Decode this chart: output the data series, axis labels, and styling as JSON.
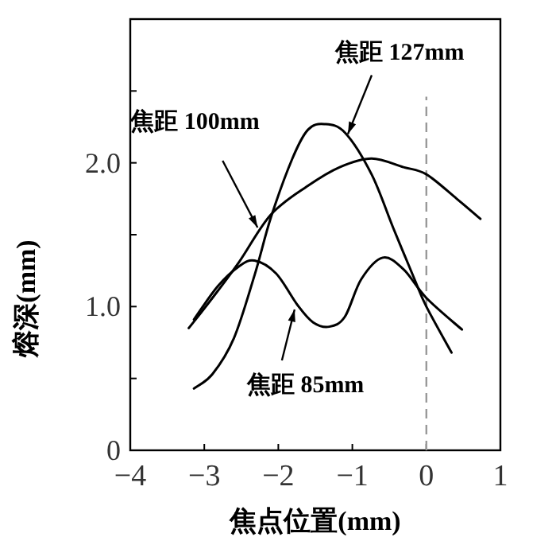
{
  "chart_data": {
    "type": "line",
    "xlabel": "焦点位置(mm)",
    "ylabel": "熔深(mm)",
    "xlim": [
      -4,
      1
    ],
    "xticks": [
      {
        "value": -4,
        "label": "−4"
      },
      {
        "value": -3,
        "label": "−3"
      },
      {
        "value": -2,
        "label": "−2"
      },
      {
        "value": -1,
        "label": "−1"
      },
      0,
      1
    ],
    "ylim": [
      0,
      3
    ],
    "yticks": [
      0,
      {
        "value": 0.5,
        "label": null
      },
      {
        "value": 1,
        "label": "1.0"
      },
      {
        "value": 1.5,
        "label": null
      },
      {
        "value": 2,
        "label": "2.0"
      },
      {
        "value": 2.5,
        "label": null
      }
    ],
    "grid": false,
    "marker": "none",
    "line_style": "solid",
    "series": [
      {
        "color": "#000000",
        "x": [
          -3.14,
          -2.89,
          -2.6,
          -2.32,
          -2.1,
          -1.81,
          -1.6,
          -1.38,
          -1.1,
          -0.74,
          -0.45,
          -0.16,
          0,
          0.34
        ],
        "values": [
          0.43,
          0.53,
          0.78,
          1.22,
          1.62,
          2.03,
          2.23,
          2.27,
          2.21,
          1.92,
          1.55,
          1.19,
          1.0,
          0.68
        ]
      },
      {
        "color": "#000000",
        "x": [
          -3.21,
          -2.89,
          -2.53,
          -2.1,
          -1.6,
          -1.17,
          -0.74,
          -0.31,
          0,
          0.41,
          0.73
        ],
        "values": [
          0.85,
          1.06,
          1.31,
          1.64,
          1.84,
          1.97,
          2.03,
          1.97,
          1.92,
          1.75,
          1.61
        ]
      },
      {
        "color": "#000000",
        "x": [
          -3.14,
          -2.82,
          -2.53,
          -2.32,
          -2.03,
          -1.74,
          -1.53,
          -1.31,
          -1.1,
          -0.88,
          -0.59,
          -0.31,
          0,
          0.48
        ],
        "values": [
          0.91,
          1.14,
          1.28,
          1.32,
          1.23,
          1.01,
          0.89,
          0.86,
          0.93,
          1.19,
          1.34,
          1.26,
          1.06,
          0.84
        ]
      }
    ],
    "ref_lines": [
      {
        "axis": "x",
        "value": 0,
        "color": "#999999",
        "line_style": "dashed"
      }
    ],
    "annotations": [
      {
        "text": "焦距 127mm",
        "x": -1.06,
        "y": 2.2
      },
      {
        "text": "焦距 100mm",
        "x": -2.28,
        "y": 1.55
      },
      {
        "text": "焦距 85mm",
        "x": -1.78,
        "y": 0.98
      }
    ]
  }
}
